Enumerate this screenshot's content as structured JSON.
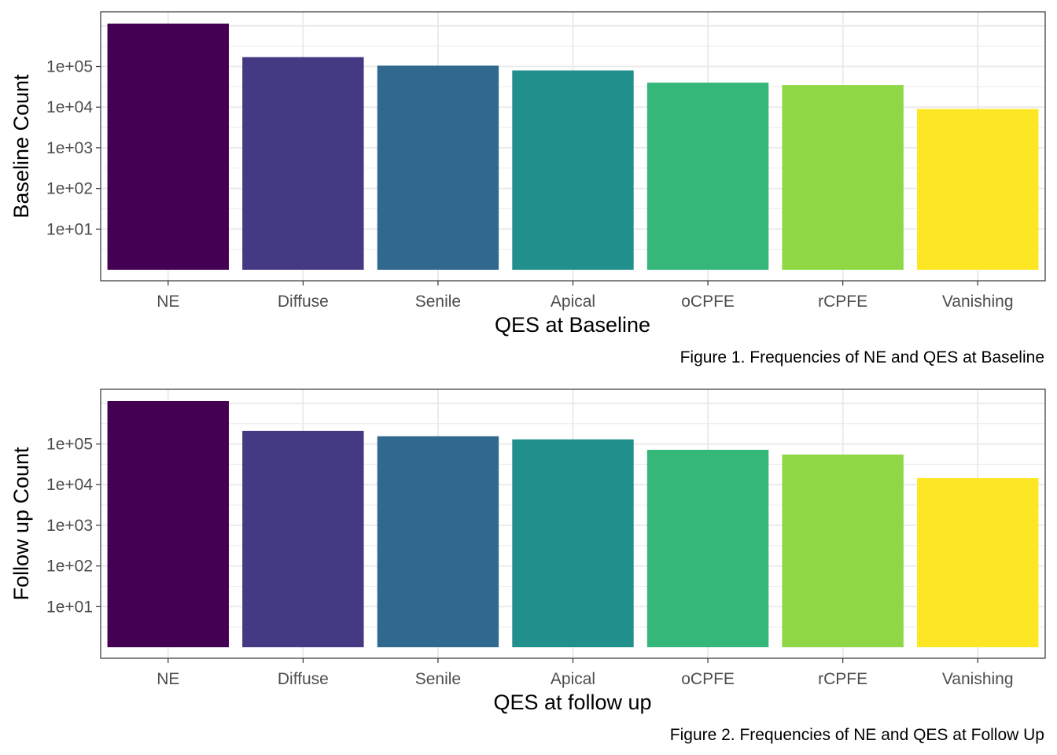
{
  "chart_data": [
    {
      "type": "bar",
      "categories": [
        "NE",
        "Diffuse",
        "Senile",
        "Apical",
        "oCPFE",
        "rCPFE",
        "Vanishing"
      ],
      "values": [
        1300000,
        170000,
        105000,
        80000,
        40000,
        35000,
        9000
      ],
      "colors": [
        "#440154",
        "#443983",
        "#31688E",
        "#21908C",
        "#35B779",
        "#8FD744",
        "#FDE725"
      ],
      "yscale": "log10",
      "ylim": [
        1,
        2000000
      ],
      "yticks": [
        10,
        100,
        1000,
        10000,
        100000
      ],
      "ytick_labels": [
        "1e+01",
        "1e+02",
        "1e+03",
        "1e+04",
        "1e+05"
      ],
      "xlabel": "QES at Baseline",
      "ylabel": "Baseline Count",
      "caption": "Figure 1. Frequencies of NE and QES at Baseline",
      "grid": true
    },
    {
      "type": "bar",
      "categories": [
        "NE",
        "Diffuse",
        "Senile",
        "Apical",
        "oCPFE",
        "rCPFE",
        "Vanishing"
      ],
      "values": [
        1300000,
        210000,
        155000,
        130000,
        72000,
        55000,
        14500
      ],
      "colors": [
        "#440154",
        "#443983",
        "#31688E",
        "#21908C",
        "#35B779",
        "#8FD744",
        "#FDE725"
      ],
      "yscale": "log10",
      "ylim": [
        1,
        2000000
      ],
      "yticks": [
        10,
        100,
        1000,
        10000,
        100000
      ],
      "ytick_labels": [
        "1e+01",
        "1e+02",
        "1e+03",
        "1e+04",
        "1e+05"
      ],
      "xlabel": "QES at follow up",
      "ylabel": "Follow up Count",
      "caption": "Figure 2. Frequencies of NE and QES at Follow Up",
      "grid": true
    }
  ]
}
